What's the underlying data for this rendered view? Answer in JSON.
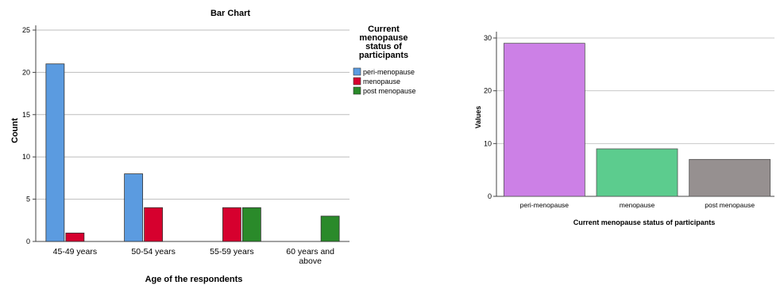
{
  "chart_data": [
    {
      "type": "bar",
      "title": "Bar Chart",
      "xlabel": "Age of the respondents",
      "ylabel": "Count",
      "ylim": [
        0,
        25
      ],
      "yticks": [
        0,
        5,
        10,
        15,
        20,
        25
      ],
      "grid": true,
      "legend_position": "right",
      "legend_title": [
        "Current",
        "menopause",
        "status of",
        "participants"
      ],
      "categories": [
        [
          "45-49 years"
        ],
        [
          "50-54 years"
        ],
        [
          "55-59 years"
        ],
        [
          "60 years and",
          "above"
        ]
      ],
      "series": [
        {
          "name": "peri-menopause",
          "color": "#5b9be0",
          "values": [
            21,
            8,
            null,
            null
          ]
        },
        {
          "name": "menopause",
          "color": "#d6002e",
          "values": [
            1,
            4,
            4,
            null
          ]
        },
        {
          "name": "post menopause",
          "color": "#2a8a2a",
          "values": [
            null,
            null,
            4,
            3
          ]
        }
      ]
    },
    {
      "type": "bar",
      "title": "",
      "xlabel": "Current menopause status of participants",
      "ylabel": "Values",
      "ylim": [
        0,
        30
      ],
      "yticks": [
        0,
        10,
        20,
        30
      ],
      "grid": true,
      "categories": [
        "peri-menopause",
        "menopause",
        "post menopause"
      ],
      "values": [
        29,
        9,
        7
      ],
      "colors": [
        "#cc80e6",
        "#5ccc8e",
        "#969090"
      ]
    }
  ]
}
